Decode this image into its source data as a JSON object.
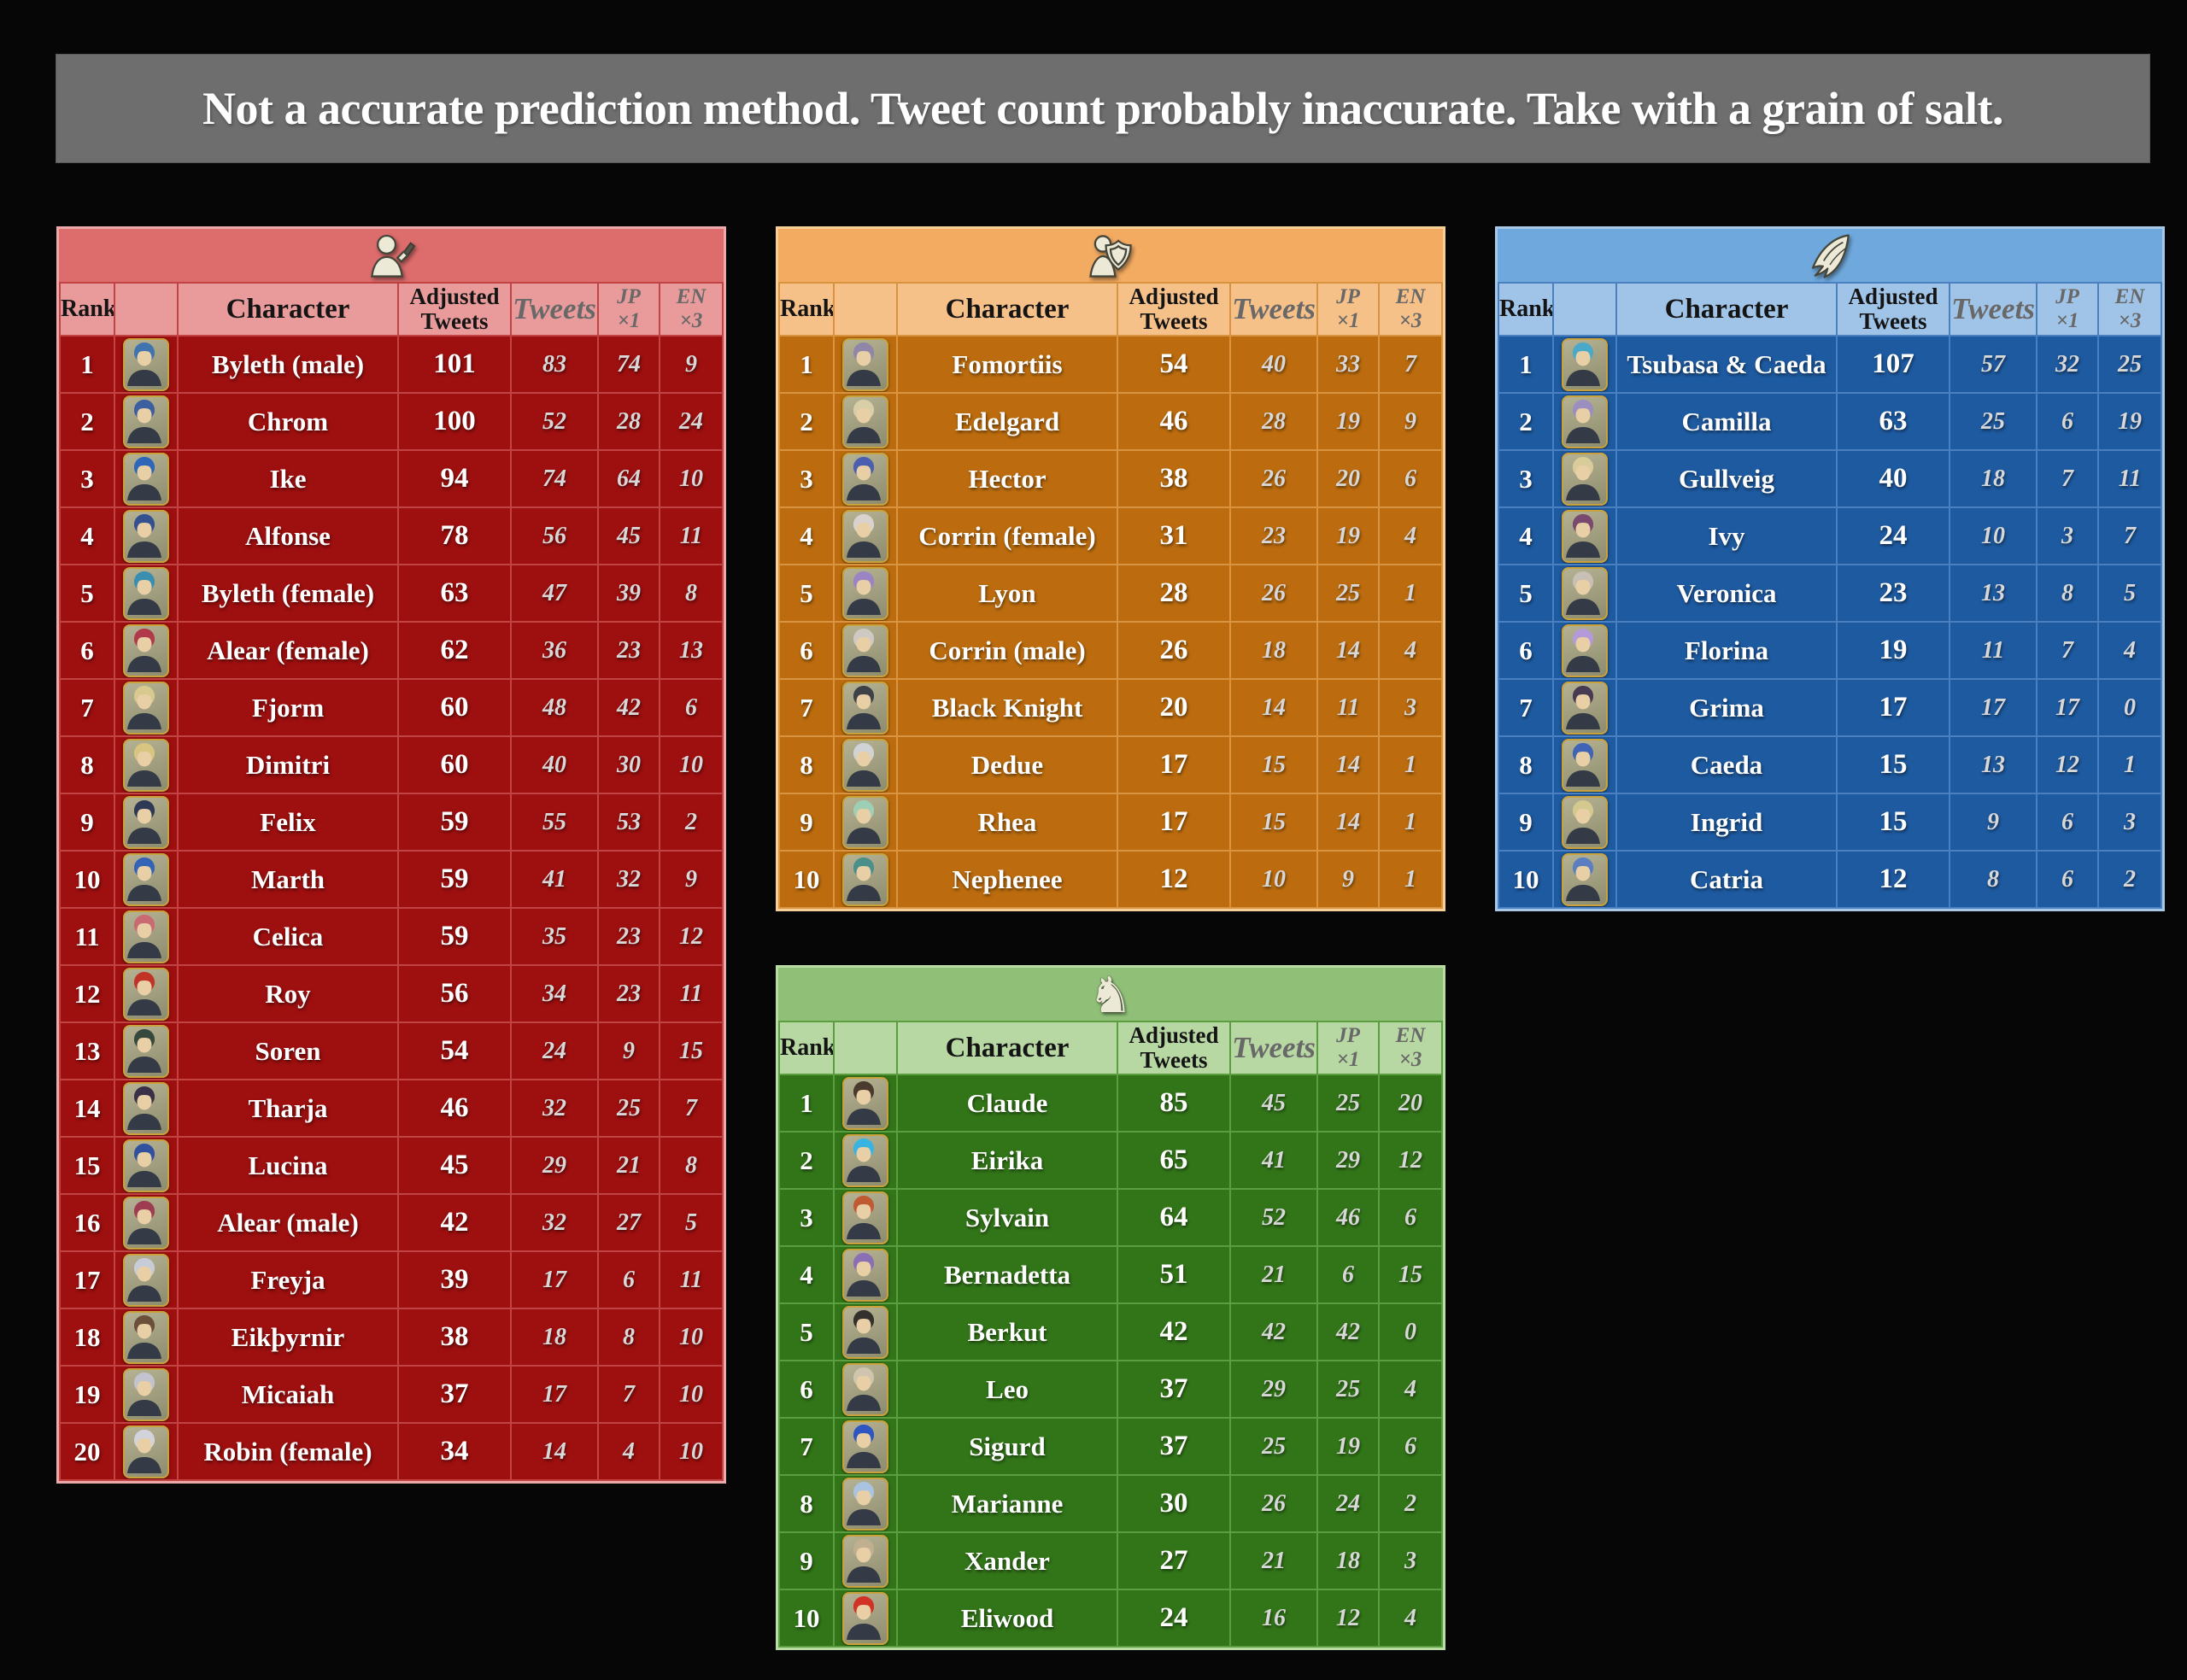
{
  "banner": {
    "text": "Not a accurate prediction method. Tweet count probably inaccurate. Take with a grain of salt."
  },
  "columns": {
    "rank": "Rank",
    "character": "Character",
    "adjusted_line1": "Adjusted",
    "adjusted_line2": "Tweets",
    "tweets": "Tweets",
    "jp_line1": "JP",
    "jp_line2": "×1",
    "en_line1": "EN",
    "en_line2": "×3"
  },
  "chart_data": {
    "type": "table",
    "tables": [
      {
        "id": "infantry",
        "icon": "infantry-icon",
        "colors": {
          "band": "#dd6c6c",
          "header": "#e99b9b",
          "body": "#9e0f0f",
          "grid": "#c14343",
          "border": "#eba9a9"
        },
        "rows": [
          {
            "rank": 1,
            "character": "Byleth (male)",
            "adjusted": 101,
            "tweets": 83,
            "jp": 74,
            "en": 9,
            "portrait_color": "#3f74ae"
          },
          {
            "rank": 2,
            "character": "Chrom",
            "adjusted": 100,
            "tweets": 52,
            "jp": 28,
            "en": 24,
            "portrait_color": "#3c5fa0"
          },
          {
            "rank": 3,
            "character": "Ike",
            "adjusted": 94,
            "tweets": 74,
            "jp": 64,
            "en": 10,
            "portrait_color": "#2e66b8"
          },
          {
            "rank": 4,
            "character": "Alfonse",
            "adjusted": 78,
            "tweets": 56,
            "jp": 45,
            "en": 11,
            "portrait_color": "#33518f"
          },
          {
            "rank": 5,
            "character": "Byleth (female)",
            "adjusted": 63,
            "tweets": 47,
            "jp": 39,
            "en": 8,
            "portrait_color": "#3a8fb0"
          },
          {
            "rank": 6,
            "character": "Alear (female)",
            "adjusted": 62,
            "tweets": 36,
            "jp": 23,
            "en": 13,
            "portrait_color": "#b03a4a"
          },
          {
            "rank": 7,
            "character": "Fjorm",
            "adjusted": 60,
            "tweets": 48,
            "jp": 42,
            "en": 6,
            "portrait_color": "#d8c98e"
          },
          {
            "rank": 8,
            "character": "Dimitri",
            "adjusted": 60,
            "tweets": 40,
            "jp": 30,
            "en": 10,
            "portrait_color": "#d8c581"
          },
          {
            "rank": 9,
            "character": "Felix",
            "adjusted": 59,
            "tweets": 55,
            "jp": 53,
            "en": 2,
            "portrait_color": "#2e3a55"
          },
          {
            "rank": 10,
            "character": "Marth",
            "adjusted": 59,
            "tweets": 41,
            "jp": 32,
            "en": 9,
            "portrait_color": "#3563b5"
          },
          {
            "rank": 11,
            "character": "Celica",
            "adjusted": 59,
            "tweets": 35,
            "jp": 23,
            "en": 12,
            "portrait_color": "#c96a72"
          },
          {
            "rank": 12,
            "character": "Roy",
            "adjusted": 56,
            "tweets": 34,
            "jp": 23,
            "en": 11,
            "portrait_color": "#c03326"
          },
          {
            "rank": 13,
            "character": "Soren",
            "adjusted": 54,
            "tweets": 24,
            "jp": 9,
            "en": 15,
            "portrait_color": "#35493c"
          },
          {
            "rank": 14,
            "character": "Tharja",
            "adjusted": 46,
            "tweets": 32,
            "jp": 25,
            "en": 7,
            "portrait_color": "#3a3148"
          },
          {
            "rank": 15,
            "character": "Lucina",
            "adjusted": 45,
            "tweets": 29,
            "jp": 21,
            "en": 8,
            "portrait_color": "#31519e"
          },
          {
            "rank": 16,
            "character": "Alear (male)",
            "adjusted": 42,
            "tweets": 32,
            "jp": 27,
            "en": 5,
            "portrait_color": "#9e3d52"
          },
          {
            "rank": 17,
            "character": "Freyja",
            "adjusted": 39,
            "tweets": 17,
            "jp": 6,
            "en": 11,
            "portrait_color": "#c8ccd8"
          },
          {
            "rank": 18,
            "character": "Eikþyrnir",
            "adjusted": 38,
            "tweets": 18,
            "jp": 8,
            "en": 10,
            "portrait_color": "#6b4f3a"
          },
          {
            "rank": 19,
            "character": "Micaiah",
            "adjusted": 37,
            "tweets": 17,
            "jp": 7,
            "en": 10,
            "portrait_color": "#c3c3cf"
          },
          {
            "rank": 20,
            "character": "Robin (female)",
            "adjusted": 34,
            "tweets": 14,
            "jp": 4,
            "en": 10,
            "portrait_color": "#d3d3dc"
          }
        ]
      },
      {
        "id": "armored",
        "icon": "armored-icon",
        "colors": {
          "band": "#f3ab62",
          "header": "#f6c089",
          "body": "#bc6c0e",
          "grid": "#d89440",
          "border": "#f6cf96"
        },
        "rows": [
          {
            "rank": 1,
            "character": "Fomortiis",
            "adjusted": 54,
            "tweets": 40,
            "jp": 33,
            "en": 7,
            "portrait_color": "#8f86a8"
          },
          {
            "rank": 2,
            "character": "Edelgard",
            "adjusted": 46,
            "tweets": 28,
            "jp": 19,
            "en": 9,
            "portrait_color": "#d8cfa8"
          },
          {
            "rank": 3,
            "character": "Hector",
            "adjusted": 38,
            "tweets": 26,
            "jp": 20,
            "en": 6,
            "portrait_color": "#4a5fb0"
          },
          {
            "rank": 4,
            "character": "Corrin (female)",
            "adjusted": 31,
            "tweets": 23,
            "jp": 19,
            "en": 4,
            "portrait_color": "#d8d3ce"
          },
          {
            "rank": 5,
            "character": "Lyon",
            "adjusted": 28,
            "tweets": 26,
            "jp": 25,
            "en": 1,
            "portrait_color": "#9a84c4"
          },
          {
            "rank": 6,
            "character": "Corrin (male)",
            "adjusted": 26,
            "tweets": 18,
            "jp": 14,
            "en": 4,
            "portrait_color": "#cfc9c4"
          },
          {
            "rank": 7,
            "character": "Black Knight",
            "adjusted": 20,
            "tweets": 14,
            "jp": 11,
            "en": 3,
            "portrait_color": "#3d4148"
          },
          {
            "rank": 8,
            "character": "Dedue",
            "adjusted": 17,
            "tweets": 15,
            "jp": 14,
            "en": 1,
            "portrait_color": "#cfd3d6"
          },
          {
            "rank": 9,
            "character": "Rhea",
            "adjusted": 17,
            "tweets": 15,
            "jp": 14,
            "en": 1,
            "portrait_color": "#9ecfb4"
          },
          {
            "rank": 10,
            "character": "Nephenee",
            "adjusted": 12,
            "tweets": 10,
            "jp": 9,
            "en": 1,
            "portrait_color": "#4a8f8a"
          }
        ]
      },
      {
        "id": "flying",
        "icon": "flying-icon",
        "colors": {
          "band": "#6fa8dc",
          "header": "#a0c4e8",
          "body": "#1e5aa0",
          "grid": "#4a7fc0",
          "border": "#a8c8e8"
        },
        "rows": [
          {
            "rank": 1,
            "character": "Tsubasa & Caeda",
            "adjusted": 107,
            "tweets": 57,
            "jp": 32,
            "en": 25,
            "portrait_color": "#4aa8c8"
          },
          {
            "rank": 2,
            "character": "Camilla",
            "adjusted": 63,
            "tweets": 25,
            "jp": 6,
            "en": 19,
            "portrait_color": "#9a8fc0"
          },
          {
            "rank": 3,
            "character": "Gullveig",
            "adjusted": 40,
            "tweets": 18,
            "jp": 7,
            "en": 11,
            "portrait_color": "#d8cc9a"
          },
          {
            "rank": 4,
            "character": "Ivy",
            "adjusted": 24,
            "tweets": 10,
            "jp": 3,
            "en": 7,
            "portrait_color": "#7a4a6e"
          },
          {
            "rank": 5,
            "character": "Veronica",
            "adjusted": 23,
            "tweets": 13,
            "jp": 8,
            "en": 5,
            "portrait_color": "#c8c0b4"
          },
          {
            "rank": 6,
            "character": "Florina",
            "adjusted": 19,
            "tweets": 11,
            "jp": 7,
            "en": 4,
            "portrait_color": "#b49ad8"
          },
          {
            "rank": 7,
            "character": "Grima",
            "adjusted": 17,
            "tweets": 17,
            "jp": 17,
            "en": 0,
            "portrait_color": "#473a52"
          },
          {
            "rank": 8,
            "character": "Caeda",
            "adjusted": 15,
            "tweets": 13,
            "jp": 12,
            "en": 1,
            "portrait_color": "#3f63b5"
          },
          {
            "rank": 9,
            "character": "Ingrid",
            "adjusted": 15,
            "tweets": 9,
            "jp": 6,
            "en": 3,
            "portrait_color": "#d3c88e"
          },
          {
            "rank": 10,
            "character": "Catria",
            "adjusted": 12,
            "tweets": 8,
            "jp": 6,
            "en": 2,
            "portrait_color": "#5a7ec0"
          }
        ]
      },
      {
        "id": "cavalry",
        "icon": "cavalry-icon",
        "colors": {
          "band": "#90c078",
          "header": "#b7d7a3",
          "body": "#327518",
          "grid": "#5a9e40",
          "border": "#b8dca4"
        },
        "rows": [
          {
            "rank": 1,
            "character": "Claude",
            "adjusted": 85,
            "tweets": 45,
            "jp": 25,
            "en": 20,
            "portrait_color": "#4a3b2e"
          },
          {
            "rank": 2,
            "character": "Eirika",
            "adjusted": 65,
            "tweets": 41,
            "jp": 29,
            "en": 12,
            "portrait_color": "#39b4e0"
          },
          {
            "rank": 3,
            "character": "Sylvain",
            "adjusted": 64,
            "tweets": 52,
            "jp": 46,
            "en": 6,
            "portrait_color": "#c05a33"
          },
          {
            "rank": 4,
            "character": "Bernadetta",
            "adjusted": 51,
            "tweets": 21,
            "jp": 6,
            "en": 15,
            "portrait_color": "#8a6fb5"
          },
          {
            "rank": 5,
            "character": "Berkut",
            "adjusted": 42,
            "tweets": 42,
            "jp": 42,
            "en": 0,
            "portrait_color": "#33302e"
          },
          {
            "rank": 6,
            "character": "Leo",
            "adjusted": 37,
            "tweets": 29,
            "jp": 25,
            "en": 4,
            "portrait_color": "#cfc4ae"
          },
          {
            "rank": 7,
            "character": "Sigurd",
            "adjusted": 37,
            "tweets": 25,
            "jp": 19,
            "en": 6,
            "portrait_color": "#2e55c0"
          },
          {
            "rank": 8,
            "character": "Marianne",
            "adjusted": 30,
            "tweets": 26,
            "jp": 24,
            "en": 2,
            "portrait_color": "#a8c4e0"
          },
          {
            "rank": 9,
            "character": "Xander",
            "adjusted": 27,
            "tweets": 21,
            "jp": 18,
            "en": 3,
            "portrait_color": "#c0b090"
          },
          {
            "rank": 10,
            "character": "Eliwood",
            "adjusted": 24,
            "tweets": 16,
            "jp": 12,
            "en": 4,
            "portrait_color": "#d03326"
          }
        ]
      }
    ]
  }
}
